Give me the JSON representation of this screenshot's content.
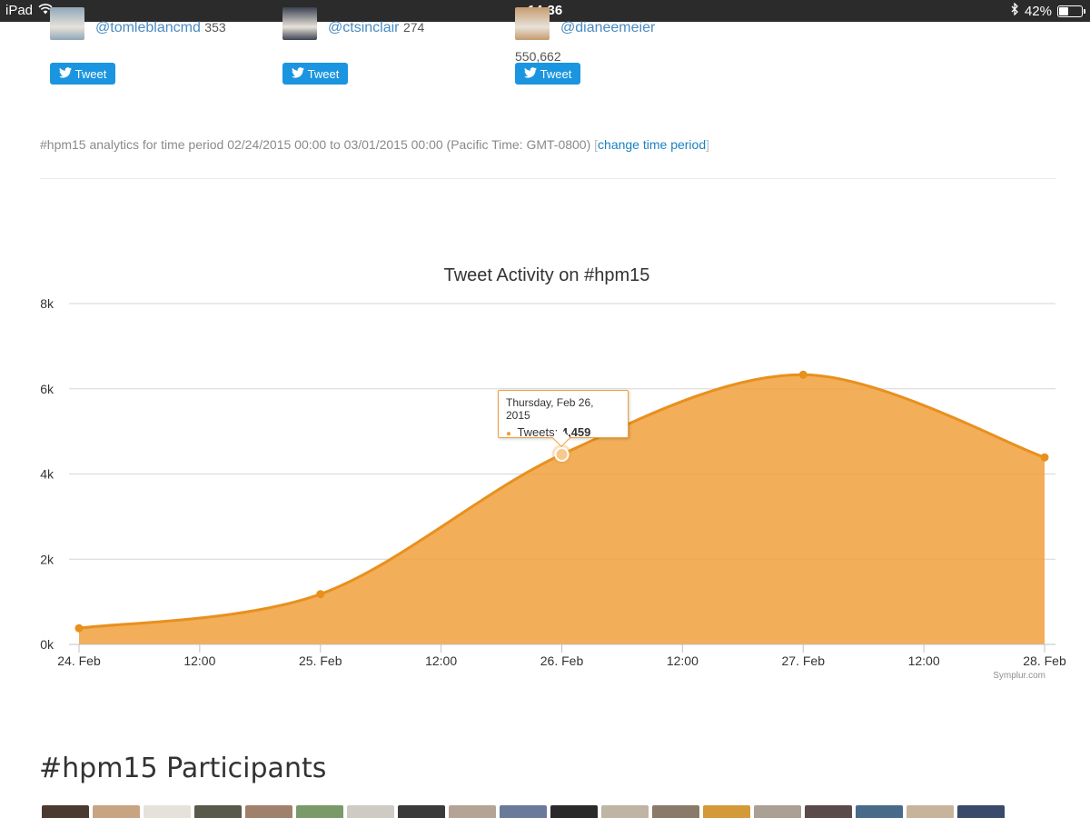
{
  "status_bar": {
    "device": "iPad",
    "time": "14:36",
    "battery": "42%",
    "battery_level": 0.42
  },
  "influencers": [
    {
      "handle": "@tomleblancmd",
      "count": "353",
      "tweet_label": "Tweet",
      "avatar_color": "#8fa7b8"
    },
    {
      "handle": "@ctsinclair",
      "count": "274",
      "tweet_label": "Tweet",
      "avatar_color": "#3b4252"
    },
    {
      "handle": "@dianeemeier",
      "count": "550,662",
      "tweet_label": "Tweet",
      "avatar_color": "#c59b6d"
    }
  ],
  "period": {
    "text": "#hpm15 analytics for time period 02/24/2015 00:00 to 03/01/2015 00:00 (Pacific Time: GMT-0800)",
    "bracket_open": "[",
    "link": "change time period",
    "bracket_close": "]"
  },
  "chart_data": {
    "type": "area",
    "title": "Tweet Activity on #hpm15",
    "x": [
      "24. Feb",
      "25. Feb",
      "26. Feb",
      "27. Feb",
      "28. Feb"
    ],
    "x_ticks": [
      "24. Feb",
      "12:00",
      "25. Feb",
      "12:00",
      "26. Feb",
      "12:00",
      "27. Feb",
      "12:00",
      "28. Feb"
    ],
    "y_ticks": [
      "0k",
      "2k",
      "4k",
      "6k",
      "8k"
    ],
    "ylim": [
      0,
      8000
    ],
    "series": [
      {
        "name": "Tweets",
        "values": [
          380,
          1180,
          4459,
          6330,
          4390
        ],
        "color": "#f0a03c"
      }
    ],
    "grid": true,
    "legend": false,
    "tooltip": {
      "date": "Thursday, Feb 26, 2015",
      "label": "Tweets:",
      "value": "4,459",
      "index": 2
    },
    "credits": "Symplur.com"
  },
  "participants": {
    "title": "#hpm15 Participants",
    "thumb_colors": [
      "#4a3a30",
      "#c8a482",
      "#e6e1da",
      "#5a5a4a",
      "#a0826c",
      "#7a9a6a",
      "#cfcac4",
      "#3a3a3a",
      "#b4a496",
      "#6a7a9a",
      "#2a2a2a",
      "#c0b4a4",
      "#8a7a6a",
      "#d49a3a",
      "#aaa094",
      "#5a4a4a",
      "#4a6a8a",
      "#c8b49a",
      "#3a4a6a"
    ]
  }
}
